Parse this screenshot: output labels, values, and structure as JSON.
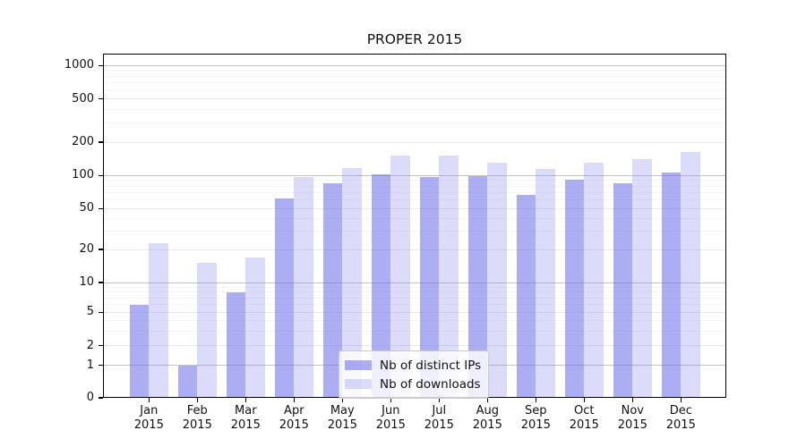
{
  "chart_data": {
    "type": "bar",
    "title": "PROPER 2015",
    "categories": [
      "Jan",
      "Feb",
      "Mar",
      "Apr",
      "May",
      "Jun",
      "Jul",
      "Aug",
      "Sep",
      "Oct",
      "Nov",
      "Dec"
    ],
    "category_year": "2015",
    "series": [
      {
        "name": "Nb of distinct IPs",
        "color": "rgba(97,97,232,0.52)",
        "color_flat": "#adadf3",
        "values": [
          6,
          1,
          8,
          62,
          85,
          102,
          96,
          98,
          67,
          92,
          85,
          107
        ]
      },
      {
        "name": "Nb of downloads",
        "color": "rgba(97,97,232,0.22)",
        "color_flat": "#dcdcfa",
        "values": [
          23,
          15,
          17,
          97,
          117,
          150,
          152,
          130,
          114,
          130,
          140,
          163
        ]
      }
    ],
    "yscale": "symlog",
    "yticks": [
      0,
      1,
      2,
      5,
      10,
      20,
      50,
      100,
      200,
      500,
      1000
    ],
    "ytick_labels": [
      "0",
      "1",
      "2",
      "5",
      "10",
      "20",
      "50",
      "100",
      "200",
      "500",
      "1000"
    ],
    "yticks_minor": [
      3,
      4,
      6,
      7,
      8,
      9,
      30,
      40,
      60,
      70,
      80,
      90,
      300,
      400,
      600,
      700,
      800,
      900
    ],
    "ylim": [
      0,
      1280
    ],
    "grid": true,
    "legend_position": "lower center"
  }
}
